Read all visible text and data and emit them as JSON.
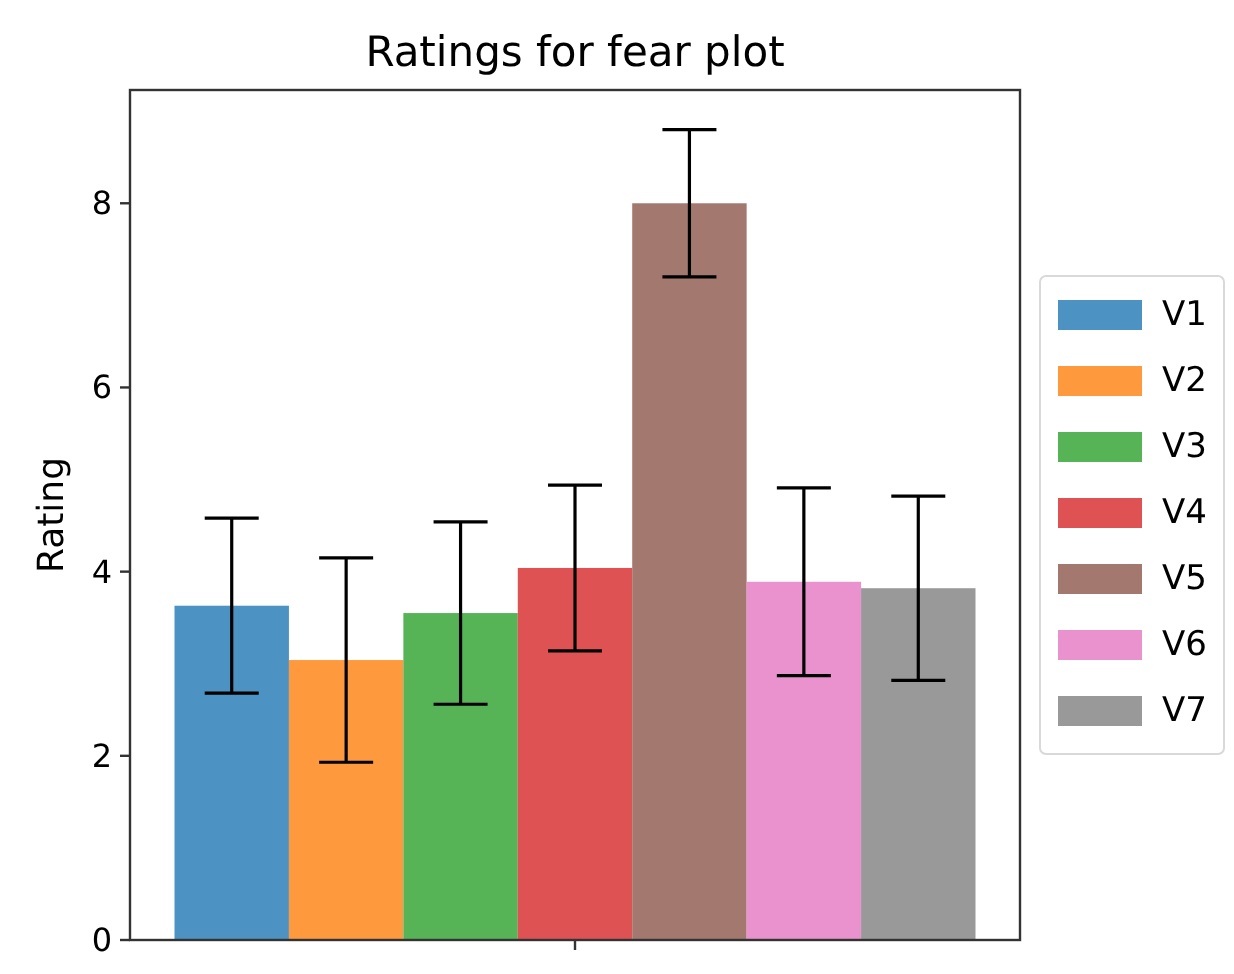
{
  "chart_data": {
    "type": "bar",
    "title": "Ratings for fear plot",
    "ylabel": "Rating",
    "categories": [
      null
    ],
    "series": [
      {
        "name": "V1",
        "color": "#4c92c3",
        "values": [
          3.63
        ],
        "errors": [
          0.95
        ]
      },
      {
        "name": "V2",
        "color": "#ff993e",
        "values": [
          3.04
        ],
        "errors": [
          1.11
        ]
      },
      {
        "name": "V3",
        "color": "#56b356",
        "values": [
          3.55
        ],
        "errors": [
          0.99
        ]
      },
      {
        "name": "V4",
        "color": "#de5253",
        "values": [
          4.04
        ],
        "errors": [
          0.9
        ]
      },
      {
        "name": "V5",
        "color": "#a3786f",
        "values": [
          8.0
        ],
        "errors": [
          0.8
        ]
      },
      {
        "name": "V6",
        "color": "#e992ce",
        "values": [
          3.89
        ],
        "errors": [
          1.02
        ]
      },
      {
        "name": "V7",
        "color": "#999999",
        "values": [
          3.82
        ],
        "errors": [
          1.0
        ]
      }
    ],
    "ylim": [
      0,
      9.23
    ],
    "yticks": [
      0,
      2,
      4,
      6,
      8
    ],
    "legend": "right"
  }
}
